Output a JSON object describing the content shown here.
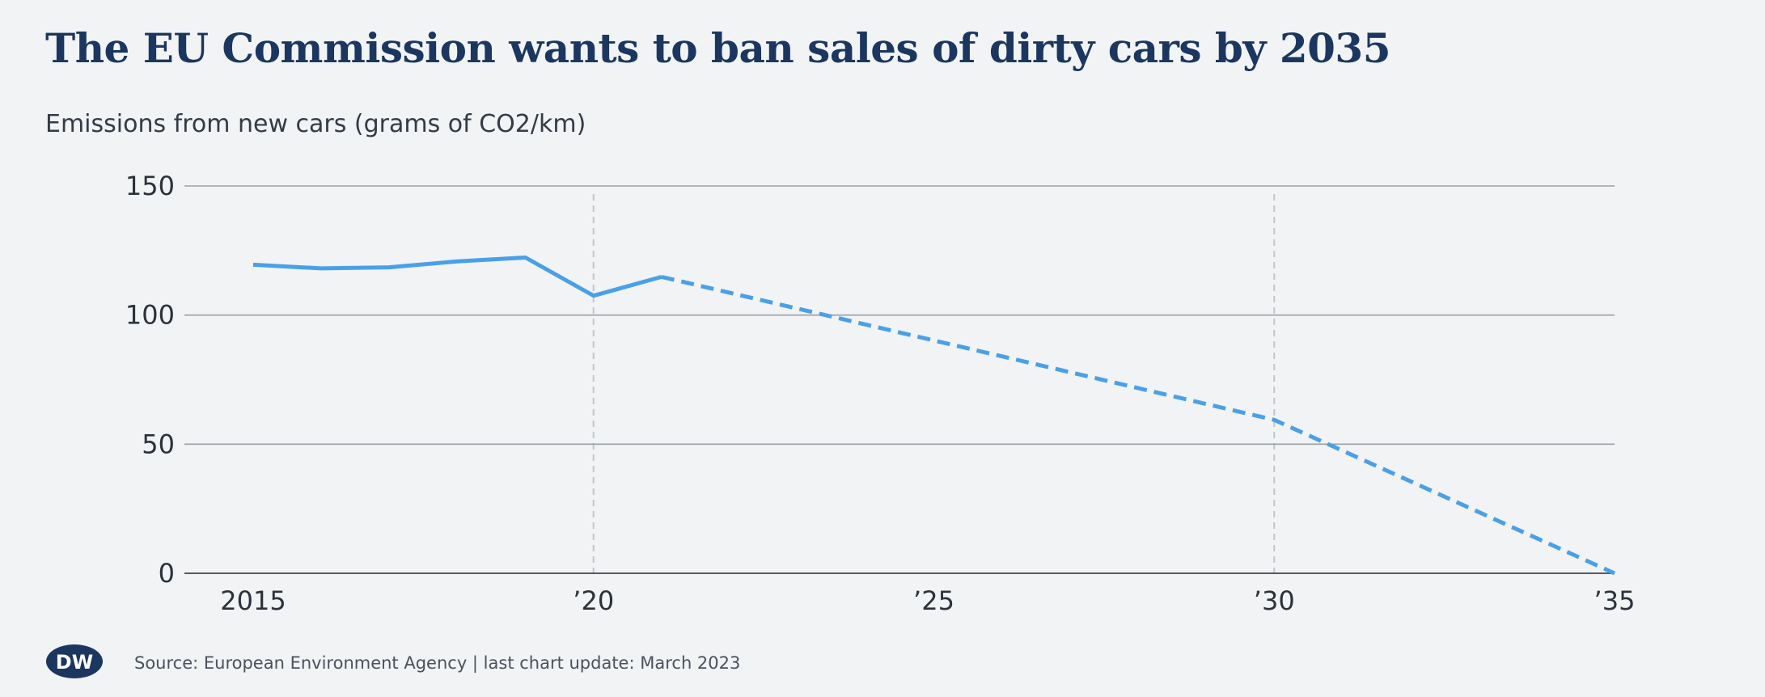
{
  "header": {
    "title": "The EU Commission wants to ban sales of dirty cars by 2035",
    "subtitle": "Emissions from new cars (grams of CO2/km)"
  },
  "footer": {
    "logo_text": "DW",
    "source": "Source: European Environment Agency | last chart update: March 2023"
  },
  "colors": {
    "line": "#4aa0e8",
    "grid": "#9aa0a6",
    "axis": "#555b62",
    "vline": "#c2c6cb",
    "tick_text": "#2b323a",
    "logo": "#1b3760"
  },
  "chart_data": {
    "type": "line",
    "title": "The EU Commission wants to ban sales of dirty cars by 2035",
    "ylabel": "Emissions from new cars (grams of CO2/km)",
    "xlabel": "",
    "xlim": [
      2014,
      2035
    ],
    "ylim": [
      0,
      150
    ],
    "grid": true,
    "y_ticks": [
      0,
      50,
      100,
      150
    ],
    "x_ticks": [
      {
        "value": 2015,
        "label": "2015"
      },
      {
        "value": 2020,
        "label": "’20"
      },
      {
        "value": 2025,
        "label": "’25"
      },
      {
        "value": 2030,
        "label": "’30"
      },
      {
        "value": 2035,
        "label": "’35"
      }
    ],
    "reference_lines_x": [
      2020,
      2030
    ],
    "series": [
      {
        "style": "solid",
        "x": [
          2015,
          2016,
          2017,
          2018,
          2019,
          2020,
          2021
        ],
        "values": [
          119.5,
          118.1,
          118.5,
          120.8,
          122.3,
          107.5,
          114.8
        ]
      },
      {
        "style": "dashed",
        "x": [
          2021,
          2030,
          2035
        ],
        "values": [
          114.8,
          59.4,
          0
        ]
      }
    ]
  }
}
